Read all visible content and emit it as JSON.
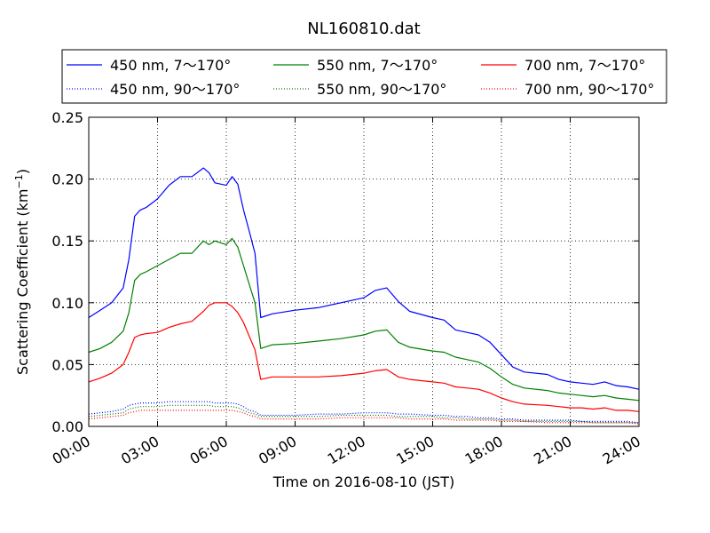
{
  "chart_data": {
    "type": "line",
    "title": "NL160810.dat",
    "xlabel": "Time on 2016-08-10 (JST)",
    "ylabel_main": "Scattering Coefficient (km",
    "ylabel_sup": "−1",
    "ylabel_close": ")",
    "xlim": [
      0,
      24
    ],
    "ylim": [
      0,
      0.25
    ],
    "xticks": [
      0,
      3,
      6,
      9,
      12,
      15,
      18,
      21,
      24
    ],
    "xtick_labels": [
      "00:00",
      "03:00",
      "06:00",
      "09:00",
      "12:00",
      "15:00",
      "18:00",
      "21:00",
      "24:00"
    ],
    "yticks": [
      0,
      0.05,
      0.1,
      0.15,
      0.2,
      0.25
    ],
    "ytick_labels": [
      "0.00",
      "0.05",
      "0.10",
      "0.15",
      "0.20",
      "0.25"
    ],
    "grid": true,
    "legend_position": "top (above plot, 3 columns)",
    "x": [
      0,
      0.5,
      1,
      1.5,
      1.75,
      2,
      2.25,
      2.5,
      3,
      3.5,
      4,
      4.5,
      5,
      5.25,
      5.5,
      6,
      6.25,
      6.5,
      6.75,
      7,
      7.25,
      7.5,
      8,
      9,
      10,
      11,
      12,
      12.5,
      13,
      13.5,
      14,
      15,
      15.5,
      16,
      16.5,
      17,
      17.5,
      18,
      18.5,
      19,
      20,
      20.5,
      21,
      21.5,
      22,
      22.5,
      23,
      23.5,
      24
    ],
    "series": [
      {
        "name": "450 nm, 7～170°",
        "style": "solid",
        "color": "#0000ff",
        "values": [
          0.088,
          0.094,
          0.1,
          0.112,
          0.135,
          0.17,
          0.175,
          0.177,
          0.184,
          0.195,
          0.202,
          0.202,
          0.209,
          0.205,
          0.197,
          0.195,
          0.202,
          0.196,
          0.175,
          0.158,
          0.14,
          0.088,
          0.091,
          0.094,
          0.096,
          0.1,
          0.104,
          0.11,
          0.112,
          0.101,
          0.093,
          0.088,
          0.086,
          0.078,
          0.076,
          0.074,
          0.068,
          0.058,
          0.048,
          0.044,
          0.042,
          0.038,
          0.036,
          0.035,
          0.034,
          0.036,
          0.033,
          0.032,
          0.03
        ]
      },
      {
        "name": "450 nm, 90～170°",
        "style": "dotted",
        "color": "#0000ff",
        "values": [
          0.01,
          0.011,
          0.012,
          0.014,
          0.017,
          0.018,
          0.019,
          0.019,
          0.019,
          0.02,
          0.02,
          0.02,
          0.02,
          0.02,
          0.019,
          0.019,
          0.019,
          0.018,
          0.016,
          0.013,
          0.012,
          0.009,
          0.009,
          0.009,
          0.01,
          0.01,
          0.011,
          0.011,
          0.011,
          0.01,
          0.01,
          0.009,
          0.009,
          0.008,
          0.008,
          0.007,
          0.007,
          0.006,
          0.006,
          0.005,
          0.005,
          0.005,
          0.005,
          0.004,
          0.004,
          0.004,
          0.004,
          0.004,
          0.003
        ]
      },
      {
        "name": "550 nm, 7～170°",
        "style": "solid",
        "color": "#008000",
        "values": [
          0.06,
          0.063,
          0.068,
          0.077,
          0.092,
          0.118,
          0.123,
          0.125,
          0.13,
          0.135,
          0.14,
          0.14,
          0.15,
          0.147,
          0.15,
          0.147,
          0.152,
          0.145,
          0.13,
          0.115,
          0.1,
          0.063,
          0.066,
          0.067,
          0.069,
          0.071,
          0.074,
          0.077,
          0.078,
          0.068,
          0.064,
          0.061,
          0.06,
          0.056,
          0.054,
          0.052,
          0.047,
          0.04,
          0.034,
          0.031,
          0.029,
          0.027,
          0.026,
          0.025,
          0.024,
          0.025,
          0.023,
          0.022,
          0.021
        ]
      },
      {
        "name": "550 nm, 90～170°",
        "style": "dotted",
        "color": "#008000",
        "values": [
          0.008,
          0.009,
          0.01,
          0.011,
          0.014,
          0.015,
          0.016,
          0.016,
          0.016,
          0.017,
          0.017,
          0.017,
          0.017,
          0.017,
          0.016,
          0.016,
          0.016,
          0.015,
          0.013,
          0.011,
          0.01,
          0.008,
          0.008,
          0.008,
          0.008,
          0.009,
          0.009,
          0.009,
          0.009,
          0.008,
          0.008,
          0.008,
          0.007,
          0.007,
          0.006,
          0.006,
          0.006,
          0.005,
          0.005,
          0.004,
          0.004,
          0.004,
          0.004,
          0.004,
          0.003,
          0.003,
          0.003,
          0.003,
          0.003
        ]
      },
      {
        "name": "700 nm, 7～170°",
        "style": "solid",
        "color": "#ff0000",
        "values": [
          0.036,
          0.039,
          0.043,
          0.05,
          0.06,
          0.072,
          0.074,
          0.075,
          0.076,
          0.08,
          0.083,
          0.085,
          0.093,
          0.098,
          0.1,
          0.1,
          0.097,
          0.092,
          0.084,
          0.073,
          0.062,
          0.038,
          0.04,
          0.04,
          0.04,
          0.041,
          0.043,
          0.045,
          0.046,
          0.04,
          0.038,
          0.036,
          0.035,
          0.032,
          0.031,
          0.03,
          0.027,
          0.023,
          0.02,
          0.018,
          0.017,
          0.016,
          0.015,
          0.015,
          0.014,
          0.015,
          0.013,
          0.013,
          0.012
        ]
      },
      {
        "name": "700 nm, 90～170°",
        "style": "dotted",
        "color": "#ff0000",
        "values": [
          0.006,
          0.007,
          0.008,
          0.009,
          0.011,
          0.012,
          0.013,
          0.013,
          0.013,
          0.013,
          0.013,
          0.013,
          0.013,
          0.013,
          0.013,
          0.013,
          0.013,
          0.012,
          0.011,
          0.009,
          0.008,
          0.006,
          0.006,
          0.006,
          0.006,
          0.007,
          0.007,
          0.007,
          0.007,
          0.007,
          0.006,
          0.006,
          0.006,
          0.005,
          0.005,
          0.005,
          0.005,
          0.004,
          0.004,
          0.004,
          0.003,
          0.003,
          0.003,
          0.003,
          0.003,
          0.003,
          0.003,
          0.003,
          0.002
        ]
      }
    ]
  }
}
